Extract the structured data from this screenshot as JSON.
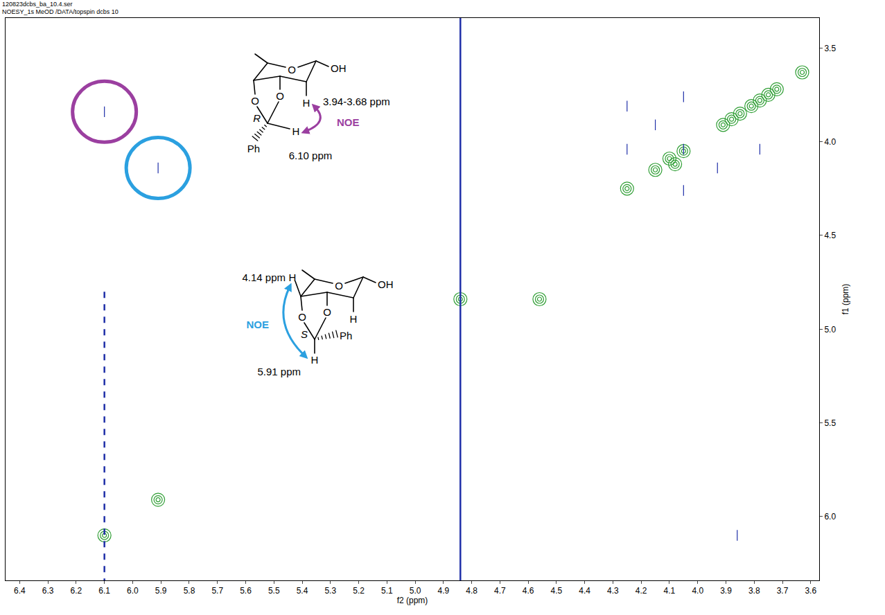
{
  "chart_data": {
    "type": "scatter",
    "header": [
      "120823dcbs_ba_10.4.ser",
      "NOESY_1s MeOD /DATA/topspin dcbs 10"
    ],
    "x_label": "f2 (ppm)",
    "y_label": "f1 (ppm)",
    "xlim": [
      6.45,
      3.57
    ],
    "xticks": [
      6.4,
      6.3,
      6.2,
      6.1,
      {
        "value": 6,
        "label": "6.0"
      },
      5.9,
      5.8,
      5.7,
      5.6,
      5.5,
      5.4,
      5.3,
      5.2,
      5.1,
      {
        "value": 5,
        "label": "5.0"
      },
      4.9,
      4.8,
      4.7,
      4.6,
      4.5,
      4.4,
      4.3,
      4.2,
      4.1,
      {
        "value": 4,
        "label": "4.0"
      },
      3.9,
      3.8,
      3.7,
      3.6
    ],
    "ylim": [
      6.34,
      3.34
    ],
    "yticks": [
      3.5,
      {
        "value": 4,
        "label": "4.0"
      },
      4.5,
      {
        "value": 5,
        "label": "5.0"
      },
      5.5,
      {
        "value": 6,
        "label": "6.0"
      }
    ],
    "grid": false,
    "series": [
      {
        "type": "scatter",
        "color": "#2f9e34",
        "marker": "circle-open",
        "x": [
          6.1,
          5.91,
          4.84,
          4.56,
          4.25,
          4.15,
          4.1,
          4.08,
          4.05,
          3.91,
          3.88,
          3.85,
          3.81,
          3.78,
          3.75,
          3.72,
          3.63
        ],
        "y": [
          6.1,
          5.91,
          4.84,
          4.84,
          4.25,
          4.15,
          4.09,
          4.12,
          4.05,
          3.91,
          3.88,
          3.85,
          3.81,
          3.78,
          3.75,
          3.72,
          3.63
        ]
      },
      {
        "type": "scatter",
        "color": "#1f2fa8",
        "marker": "line-ns-open",
        "x": [
          6.1,
          5.91,
          4.25,
          4.25,
          4.15,
          4.05,
          4.05,
          4.05,
          3.93,
          3.78,
          3.86,
          4.84
        ],
        "y": [
          3.84,
          4.14,
          3.81,
          4.04,
          3.91,
          3.76,
          4.04,
          4.26,
          4.14,
          4.04,
          6.1,
          4.57
        ]
      },
      {
        "type": "line",
        "color": "#1f2fa8",
        "line_style": "solid",
        "x": [
          4.84,
          4.84
        ],
        "y": [
          3.34,
          6.34
        ]
      },
      {
        "type": "line",
        "color": "#1f2fa8",
        "line_style": "dashed",
        "x": [
          6.1,
          6.1
        ],
        "y": [
          4.8,
          6.34
        ]
      }
    ],
    "highlights": [
      {
        "x": 6.1,
        "y": 3.84,
        "color": "#9b3fa0"
      },
      {
        "x": 5.91,
        "y": 4.14,
        "color": "#2ba0e0"
      }
    ],
    "structures": [
      {
        "stereocenter": "R",
        "oxygens": [
          "O",
          "O",
          "O"
        ],
        "hydroxyl": "OH",
        "hydrogens": [
          "H",
          "H"
        ],
        "phenyl": "Ph",
        "shifts": [
          "3.94-3.68 ppm",
          "6.10 ppm"
        ],
        "noe": "NOE",
        "color": "#9b3fa0"
      },
      {
        "stereocenter": "S",
        "oxygens": [
          "O",
          "O",
          "O"
        ],
        "hydroxyl": "OH",
        "hydrogens": [
          "H",
          "H",
          "H"
        ],
        "phenyl": "Ph",
        "shifts": [
          "4.14 ppm",
          "5.91 ppm"
        ],
        "noe": "NOE",
        "color": "#2ba0e0"
      }
    ]
  }
}
